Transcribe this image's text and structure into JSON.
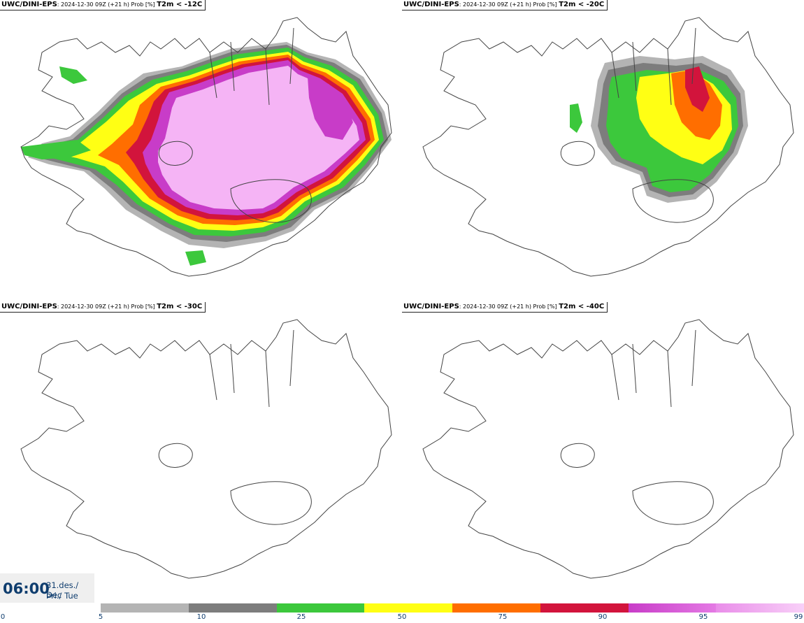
{
  "panels": [
    {
      "model": "UWC/DINI-EPS",
      "info": ": 2024-12-30 09Z (+21 h) Prob [%] ",
      "threshold": "T2m < -12C"
    },
    {
      "model": "UWC/DINI-EPS",
      "info": ": 2024-12-30 09Z (+21 h) Prob [%] ",
      "threshold": "T2m < -20C"
    },
    {
      "model": "UWC/DINI-EPS",
      "info": ": 2024-12-30 09Z (+21 h) Prob [%] ",
      "threshold": "T2m < -30C"
    },
    {
      "model": "UWC/DINI-EPS",
      "info": ": 2024-12-30 09Z (+21 h) Prob [%] ",
      "threshold": "T2m < -40C"
    }
  ],
  "time": {
    "hour": "06:00",
    "date_line1": "31.des./ Dec",
    "date_line2": "Þri./ Tue"
  },
  "colorbar": {
    "ticks": [
      "0",
      "5",
      "10",
      "25",
      "50",
      "75",
      "90",
      "95",
      "99"
    ],
    "segments": [
      {
        "from": "5",
        "to": "10",
        "color": "#b4b4b4"
      },
      {
        "from": "10",
        "to": "25",
        "color": "#7d7d7d"
      },
      {
        "from": "25",
        "to": "50",
        "color": "#3cc83c"
      },
      {
        "from": "50",
        "to": "75",
        "color": "#ffff14"
      },
      {
        "from": "75",
        "to": "90",
        "color": "#ff6e00"
      },
      {
        "from": "90",
        "to": "95",
        "color": "#d2143c"
      },
      {
        "from": "95",
        "to": "99",
        "color": "#c83cc8"
      },
      {
        "from": "99",
        "to": "100",
        "color": "#f5b4f5"
      }
    ]
  }
}
